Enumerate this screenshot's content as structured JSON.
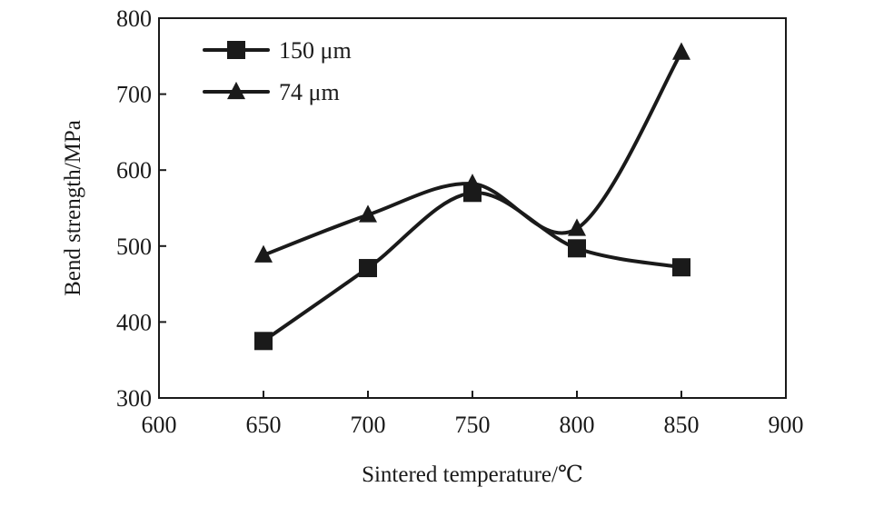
{
  "chart_data": {
    "type": "line",
    "xlabel": "Sintered temperature/℃",
    "ylabel": "Bend strength/MPa",
    "xlim": [
      600,
      900
    ],
    "ylim": [
      300,
      800
    ],
    "xticks": [
      600,
      650,
      700,
      750,
      800,
      850,
      900
    ],
    "yticks": [
      300,
      400,
      500,
      600,
      700,
      800
    ],
    "grid": false,
    "legend_position": "top-left",
    "smooth": true,
    "series": [
      {
        "name": "150 μm",
        "marker": "square",
        "x": [
          650,
          700,
          750,
          800,
          850
        ],
        "y": [
          375,
          471,
          570,
          497,
          472
        ]
      },
      {
        "name": "74 μm",
        "marker": "triangle",
        "x": [
          650,
          700,
          750,
          800,
          850
        ],
        "y": [
          488,
          541,
          582,
          523,
          755
        ]
      }
    ]
  }
}
